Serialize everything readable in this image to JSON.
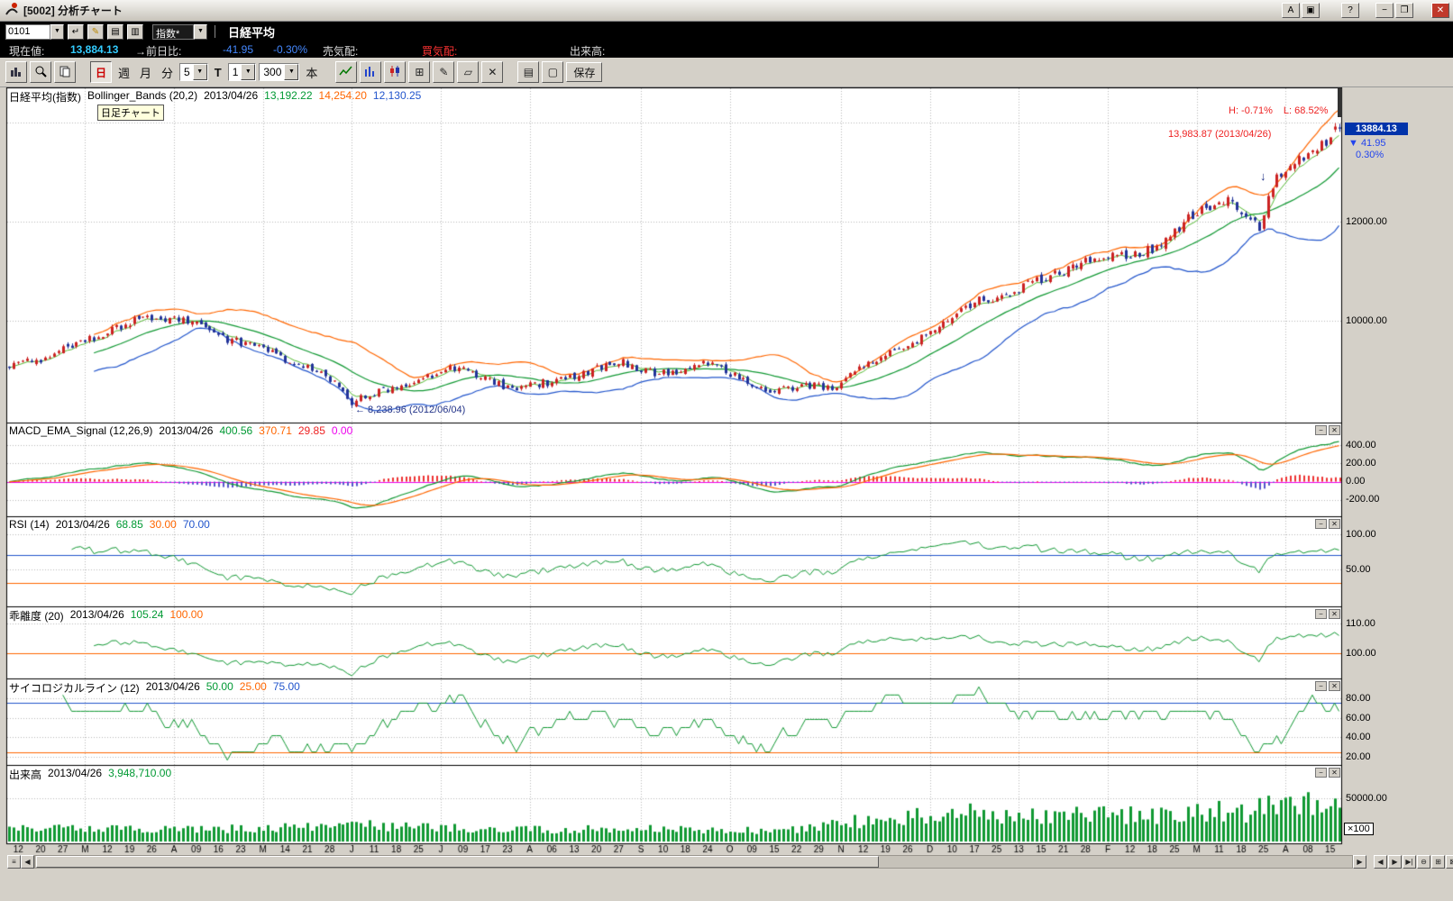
{
  "window": {
    "title": "[5002] 分析チャート"
  },
  "icons": {
    "dropdown": "▼",
    "app_a": "A",
    "layout": "▣",
    "help": "?",
    "minimize": "−",
    "maximize": "❐",
    "close": "✕",
    "enter": "↵",
    "edit": "✎",
    "doc": "▤",
    "sheet": "▥",
    "grid": "⊞",
    "pencil": "✎",
    "eraser": "▱",
    "delete": "✕",
    "pages": "▤",
    "page": "▢",
    "grip": "≡",
    "left": "◀",
    "right": "▶",
    "step": "▶|",
    "zoom_out": "⊖",
    "tile": "⊞",
    "close2": "⊠",
    "down_arrow": "↓",
    "panel_min": "−",
    "panel_close": "✕"
  },
  "toolbar1": {
    "code": "0101",
    "category": "指数*",
    "symbol": "日経平均"
  },
  "quote": {
    "current_label": "現在値:",
    "current": "13,884.13",
    "change_label": "→前日比:",
    "change": "-41.95",
    "change_pct": "-0.30%",
    "ask_label": "売気配:",
    "bid_label": "買気配:",
    "volume_label": "出来高:"
  },
  "toolbar2": {
    "day": "日",
    "week": "週",
    "month": "月",
    "minute": "分",
    "minute_count": "5",
    "t": "T",
    "interval": "1",
    "bars": "300",
    "bars_unit": "本",
    "save": "保存"
  },
  "panels": {
    "main": {
      "symbol": "日経平均(指数)",
      "indicator": "Bollinger_Bands (20,2)",
      "date": "2013/04/26",
      "mid": "13,192.22",
      "upper": "14,254.20",
      "lower": "12,130.25",
      "tooltip": "日足チャート",
      "high_label": "H: -0.71%",
      "low_label": "L: 68.52%",
      "high_note": "13,983.87 (2013/04/26)",
      "low_note": "← 8,238.96 (2012/06/04)",
      "price_box": "13884.13",
      "price_change": "▼  41.95",
      "price_change_pct": "0.30%",
      "ylabels": [
        "12000.00",
        "10000.00"
      ]
    },
    "macd": {
      "name": "MACD_EMA_Signal (12,26,9)",
      "date": "2013/04/26",
      "v1": "400.56",
      "v2": "370.71",
      "v3": "29.85",
      "v4": "0.00",
      "ylabels": [
        "400.00",
        "200.00",
        "0.00",
        "-200.00"
      ]
    },
    "rsi": {
      "name": "RSI (14)",
      "date": "2013/04/26",
      "v1": "68.85",
      "v2": "30.00",
      "v3": "70.00",
      "ylabels": [
        "100.00",
        "50.00"
      ]
    },
    "kairi": {
      "name": "乖離度 (20)",
      "date": "2013/04/26",
      "v1": "105.24",
      "v2": "100.00",
      "ylabels": [
        "110.00",
        "100.00"
      ]
    },
    "psych": {
      "name": "サイコロジカルライン (12)",
      "date": "2013/04/26",
      "v1": "50.00",
      "v2": "25.00",
      "v3": "75.00",
      "ylabels": [
        "80.00",
        "60.00",
        "40.00",
        "20.00"
      ]
    },
    "volume": {
      "name": "出来高",
      "date": "2013/04/26",
      "v1": "3,948,710.00",
      "ylabels": [
        "50000.00"
      ],
      "multiplier": "×100"
    }
  },
  "xaxis": {
    "labels": [
      "12",
      "20",
      "27",
      "M",
      "12",
      "19",
      "26",
      "A",
      "09",
      "16",
      "23",
      "M",
      "14",
      "21",
      "28",
      "J",
      "11",
      "18",
      "25",
      "J",
      "09",
      "17",
      "23",
      "A",
      "06",
      "13",
      "20",
      "27",
      "S",
      "10",
      "18",
      "24",
      "O",
      "09",
      "15",
      "22",
      "29",
      "N",
      "12",
      "19",
      "26",
      "D",
      "10",
      "17",
      "25",
      "13",
      "15",
      "21",
      "28",
      "F",
      "12",
      "18",
      "25",
      "M",
      "11",
      "18",
      "25",
      "A",
      "08",
      "15"
    ],
    "month_indices": [
      3,
      7,
      11,
      15,
      19,
      23,
      28,
      32,
      37,
      41,
      45,
      49,
      53,
      57
    ]
  },
  "chart_data": {
    "type": "candlestick-multi-panel",
    "bars": 300,
    "seed": 9,
    "price_anchors": [
      [
        0,
        9100
      ],
      [
        8,
        9250
      ],
      [
        14,
        9500
      ],
      [
        22,
        9780
      ],
      [
        27,
        9980
      ],
      [
        30,
        10080
      ],
      [
        34,
        10020
      ],
      [
        38,
        10060
      ],
      [
        42,
        9900
      ],
      [
        46,
        9750
      ],
      [
        50,
        9600
      ],
      [
        55,
        9520
      ],
      [
        60,
        9280
      ],
      [
        64,
        9150
      ],
      [
        68,
        9020
      ],
      [
        71,
        8870
      ],
      [
        74,
        8650
      ],
      [
        77,
        8280
      ],
      [
        79,
        8440
      ],
      [
        83,
        8560
      ],
      [
        87,
        8660
      ],
      [
        91,
        8780
      ],
      [
        95,
        8900
      ],
      [
        99,
        9060
      ],
      [
        103,
        8980
      ],
      [
        107,
        8820
      ],
      [
        111,
        8680
      ],
      [
        115,
        8640
      ],
      [
        119,
        8720
      ],
      [
        124,
        8820
      ],
      [
        129,
        8950
      ],
      [
        134,
        9080
      ],
      [
        138,
        9150
      ],
      [
        142,
        9000
      ],
      [
        146,
        8920
      ],
      [
        150,
        8980
      ],
      [
        154,
        9120
      ],
      [
        157,
        9160
      ],
      [
        160,
        9020
      ],
      [
        164,
        8840
      ],
      [
        168,
        8680
      ],
      [
        172,
        8600
      ],
      [
        176,
        8640
      ],
      [
        180,
        8700
      ],
      [
        184,
        8660
      ],
      [
        187,
        8720
      ],
      [
        190,
        8960
      ],
      [
        194,
        9180
      ],
      [
        198,
        9380
      ],
      [
        202,
        9520
      ],
      [
        206,
        9700
      ],
      [
        210,
        9920
      ],
      [
        214,
        10240
      ],
      [
        218,
        10400
      ],
      [
        222,
        10480
      ],
      [
        226,
        10620
      ],
      [
        230,
        10760
      ],
      [
        234,
        10880
      ],
      [
        238,
        11050
      ],
      [
        242,
        11180
      ],
      [
        246,
        11320
      ],
      [
        249,
        11420
      ],
      [
        252,
        11280
      ],
      [
        255,
        11380
      ],
      [
        258,
        11500
      ],
      [
        261,
        11680
      ],
      [
        264,
        11980
      ],
      [
        267,
        12180
      ],
      [
        270,
        12320
      ],
      [
        273,
        12460
      ],
      [
        276,
        12340
      ],
      [
        279,
        12060
      ],
      [
        281,
        11880
      ],
      [
        283,
        12480
      ],
      [
        285,
        12900
      ],
      [
        288,
        13150
      ],
      [
        291,
        13300
      ],
      [
        294,
        13480
      ],
      [
        297,
        13650
      ],
      [
        299,
        13884
      ]
    ],
    "volume_anchors": [
      [
        0,
        15000
      ],
      [
        40,
        14000
      ],
      [
        76,
        17000
      ],
      [
        80,
        19000
      ],
      [
        110,
        13500
      ],
      [
        150,
        15000
      ],
      [
        175,
        13000
      ],
      [
        185,
        20000
      ],
      [
        195,
        26000
      ],
      [
        205,
        30000
      ],
      [
        215,
        34000
      ],
      [
        225,
        30000
      ],
      [
        235,
        31000
      ],
      [
        245,
        33000
      ],
      [
        255,
        30000
      ],
      [
        265,
        34000
      ],
      [
        272,
        36000
      ],
      [
        278,
        32000
      ],
      [
        283,
        44000
      ],
      [
        288,
        48000
      ],
      [
        293,
        42000
      ],
      [
        299,
        39487
      ]
    ],
    "volume_last": 39487,
    "june_low": {
      "index": 77,
      "value": 8238.96
    },
    "last_bar": {
      "open": 13910.0,
      "high": 13983.87,
      "low": 13820.0,
      "close": 13884.13,
      "prev_close": 13926.08
    },
    "indicators": {
      "bollinger": [
        20,
        2
      ],
      "macd": [
        12,
        26,
        9
      ],
      "rsi": 14,
      "kairi": 20,
      "psychological": 12,
      "short_ema": 5
    },
    "ranges": {
      "main": [
        8000,
        14700
      ],
      "macd": [
        -350,
        480
      ],
      "rsi": [
        0,
        112
      ],
      "kairi": [
        92.5,
        112.5
      ],
      "psych": [
        14.5,
        93.8
      ],
      "volume": [
        0,
        82000
      ]
    },
    "hlines": {
      "rsi_high": 70,
      "rsi_low": 30,
      "kairi_base": 100,
      "psych_high": 75,
      "psych_low": 25
    },
    "colors": {
      "up": "#cc2222",
      "down": "#223399",
      "bb_mid": "#119933",
      "bb_up": "#ff6600",
      "bb_low": "#2255cc",
      "ema5": "#55bb33",
      "macd": "#119933",
      "signal": "#ff6600",
      "hist_pos": "#ee3333",
      "hist_neg": "#5555cc",
      "zero": "#ee00ee",
      "line": "#119933",
      "volume": "#119933",
      "grid": "#b8b8b8"
    }
  }
}
